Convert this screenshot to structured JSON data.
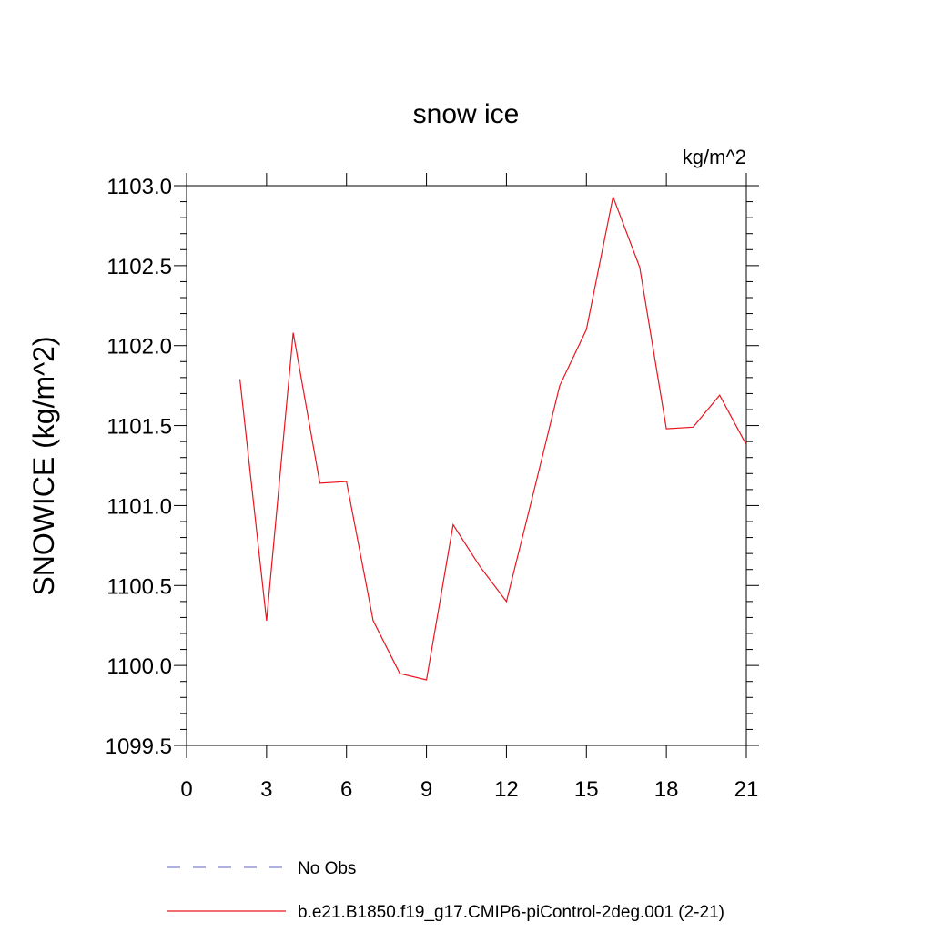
{
  "chart_data": {
    "type": "line",
    "title": "snow ice",
    "units_label": "kg/m^2",
    "ylabel": "SNOWICE  (kg/m^2)",
    "xlabel": "",
    "xlim": [
      0,
      21
    ],
    "ylim": [
      1099.5,
      1103.0
    ],
    "x_ticks": [
      0,
      3,
      6,
      9,
      12,
      15,
      18,
      21
    ],
    "x_tick_labels": [
      "0",
      "3",
      "6",
      "9",
      "12",
      "15",
      "18",
      "21"
    ],
    "y_ticks": [
      1099.5,
      1100.0,
      1100.5,
      1101.0,
      1101.5,
      1102.0,
      1102.5,
      1103.0
    ],
    "y_tick_labels": [
      "1099.5",
      "1100.0",
      "1100.5",
      "1101.0",
      "1101.5",
      "1102.0",
      "1102.5",
      "1103.0"
    ],
    "grid": false,
    "legend_position": "bottom",
    "series": [
      {
        "name": "No Obs",
        "style": "dashed",
        "color": "#7f7fd0",
        "x": [],
        "y": []
      },
      {
        "name": "b.e21.B1850.f19_g17.CMIP6-piControl-2deg.001 (2-21)",
        "style": "solid",
        "color": "#e8161e",
        "x": [
          2,
          3,
          4,
          5,
          6,
          7,
          8,
          9,
          10,
          11,
          12,
          13,
          14,
          15,
          16,
          17,
          18,
          19,
          20,
          21
        ],
        "y": [
          1101.79,
          1100.28,
          1102.08,
          1101.14,
          1101.15,
          1100.28,
          1099.95,
          1099.91,
          1100.88,
          1100.62,
          1100.4,
          1101.07,
          1101.75,
          1102.1,
          1102.93,
          1102.49,
          1101.48,
          1101.49,
          1101.69,
          1101.38
        ]
      }
    ]
  }
}
